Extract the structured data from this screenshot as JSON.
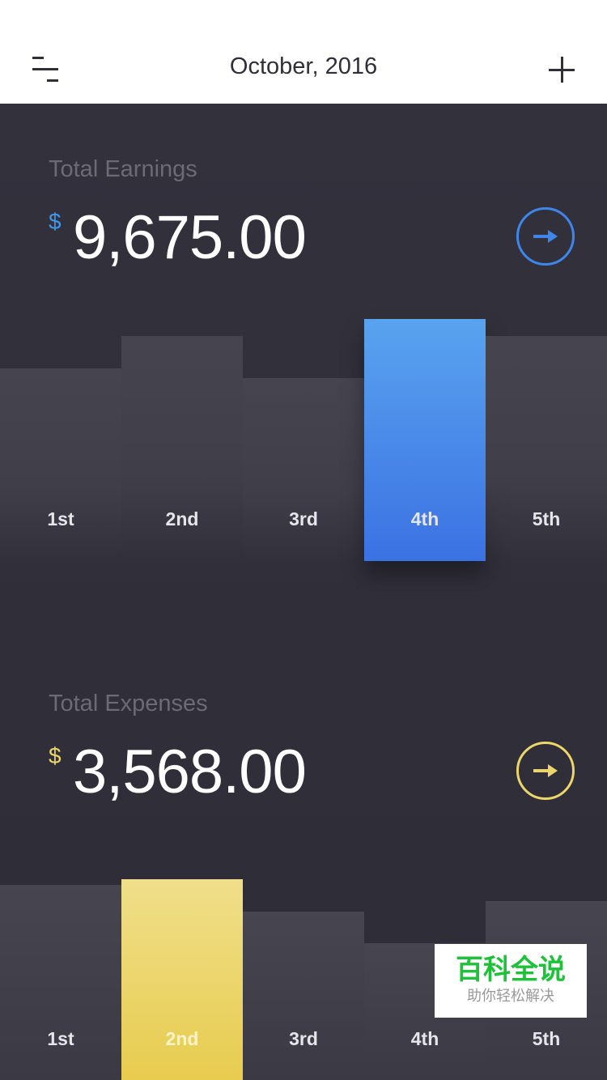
{
  "header": {
    "title": "October, 2016",
    "menu_icon": "menu-icon",
    "add_icon": "plus-icon"
  },
  "earnings": {
    "label": "Total Earnings",
    "currency": "$",
    "amount": "9,675.00",
    "accent": "#3f86ea",
    "arrow_icon": "arrow-right-icon",
    "chart_data": {
      "type": "bar",
      "categories": [
        "1st",
        "2nd",
        "3rd",
        "4th",
        "5th"
      ],
      "values": [
        80,
        93,
        76,
        100,
        93
      ],
      "highlighted": "4th"
    }
  },
  "expenses": {
    "label": "Total Expenses",
    "currency": "$",
    "amount": "3,568.00",
    "accent": "#ecd56a",
    "arrow_icon": "arrow-right-icon",
    "chart_data": {
      "type": "bar",
      "categories": [
        "1st",
        "2nd",
        "3rd",
        "4th",
        "5th"
      ],
      "values": [
        97,
        100,
        84,
        68,
        89
      ],
      "highlighted": "2nd"
    }
  },
  "watermark": {
    "title": "百科全说",
    "subtitle": "助你轻松解决"
  }
}
